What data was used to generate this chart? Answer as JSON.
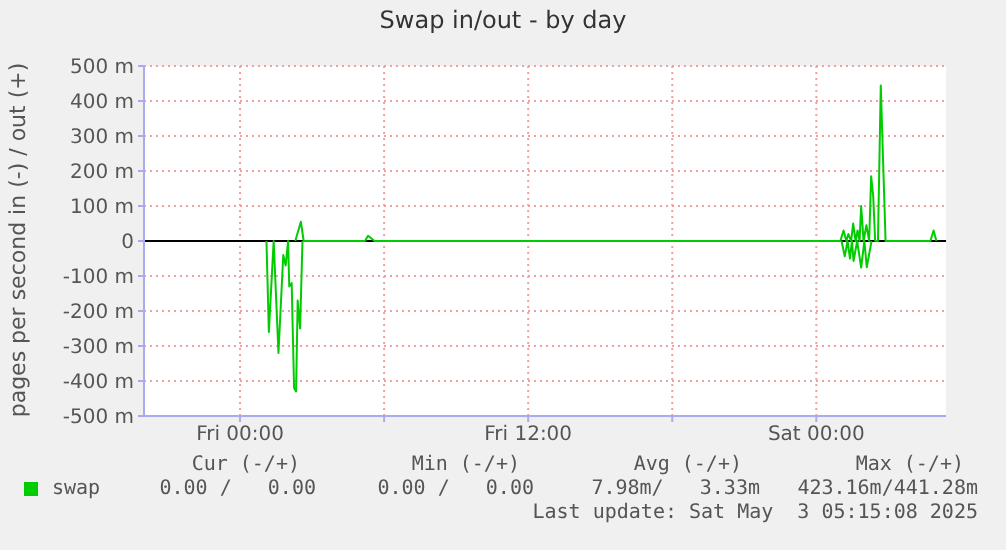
{
  "chart_data": {
    "type": "line",
    "title": "Swap in/out - by day",
    "ylabel": "pages per second in (-) / out (+)",
    "xlim": [
      "2025-05-01T20:00",
      "2025-05-03T05:24"
    ],
    "xticks": [
      {
        "value": "2025-05-02T00:00",
        "label": "Fri 00:00"
      },
      {
        "value": "2025-05-02T06:00",
        "label": null
      },
      {
        "value": "2025-05-02T12:00",
        "label": "Fri 12:00"
      },
      {
        "value": "2025-05-02T18:00",
        "label": null
      },
      {
        "value": "2025-05-03T00:00",
        "label": "Sat 00:00"
      }
    ],
    "ylim": [
      -500,
      500
    ],
    "yticks": [
      {
        "value": -500,
        "label": "-500 m"
      },
      {
        "value": -400,
        "label": "-400 m"
      },
      {
        "value": -300,
        "label": "-300 m"
      },
      {
        "value": -200,
        "label": "-200 m"
      },
      {
        "value": -100,
        "label": "-100 m"
      },
      0,
      {
        "value": 100,
        "label": "100 m"
      },
      {
        "value": 200,
        "label": "200 m"
      },
      {
        "value": 300,
        "label": "300 m"
      },
      {
        "value": 400,
        "label": "400 m"
      },
      {
        "value": 500,
        "label": "500 m"
      }
    ],
    "grid": true,
    "legend": "bottom left",
    "marker": "none",
    "line_style": "solid",
    "ref_lines": [
      {
        "axis": "y",
        "value": 0,
        "color": "#000000"
      }
    ],
    "series": [
      {
        "name": "swap",
        "color": "#00cc00",
        "x": [
          "2025-05-02T02:18",
          "2025-05-02T02:32",
          "2025-05-02T02:39",
          "2025-05-02T05:12",
          "2025-05-02T05:20",
          "2025-05-02T05:36",
          "2025-05-03T01:00",
          "2025-05-03T01:08",
          "2025-05-03T01:15",
          "2025-05-03T01:20",
          "2025-05-03T01:27",
          "2025-05-03T01:32",
          "2025-05-03T01:38",
          "2025-05-03T01:43",
          "2025-05-03T01:48",
          "2025-05-03T01:52",
          "2025-05-03T01:58",
          "2025-05-03T02:05",
          "2025-05-03T02:12",
          "2025-05-03T02:17",
          "2025-05-03T02:22",
          "2025-05-03T02:27",
          "2025-05-03T02:34",
          "2025-05-03T02:41",
          "2025-05-03T02:53",
          "2025-05-03T04:45",
          "2025-05-03T04:53",
          "2025-05-03T05:00"
        ],
        "values": [
          0,
          55,
          0,
          0,
          15,
          0,
          0,
          30,
          0,
          20,
          0,
          50,
          0,
          30,
          0,
          100,
          0,
          45,
          0,
          185,
          130,
          0,
          0,
          444,
          0,
          0,
          30,
          0
        ]
      },
      {
        "color": "#00cc00",
        "x": [
          "2025-05-02T01:06",
          "2025-05-02T01:12",
          "2025-05-02T01:24",
          "2025-05-02T01:36",
          "2025-05-02T01:48",
          "2025-05-02T01:54",
          "2025-05-02T02:00",
          "2025-05-02T02:03",
          "2025-05-02T02:09",
          "2025-05-02T02:15",
          "2025-05-02T02:20",
          "2025-05-02T02:24",
          "2025-05-02T02:30",
          "2025-05-02T02:36"
        ],
        "values": [
          0,
          -260,
          0,
          -320,
          -40,
          -70,
          0,
          -130,
          -120,
          -420,
          -430,
          -170,
          -250,
          0
        ]
      },
      {
        "color": "#00cc00",
        "x": [
          "2025-05-03T01:03",
          "2025-05-03T01:11",
          "2025-05-03T01:18",
          "2025-05-03T01:24",
          "2025-05-03T01:29",
          "2025-05-03T01:33",
          "2025-05-03T01:42",
          "2025-05-03T01:52",
          "2025-05-03T02:00",
          "2025-05-03T02:06",
          "2025-05-03T02:18"
        ],
        "values": [
          0,
          -44,
          0,
          -50,
          0,
          -57,
          0,
          -76,
          0,
          -75,
          0
        ]
      }
    ],
    "annotations": [
      "Cur (-/+)",
      "Min (-/+)",
      "Avg (-/+)",
      "Max (-/+)",
      "0.00 /   0.00",
      "0.00 /   0.00",
      "7.98m/   3.33m",
      "423.16m/441.28m",
      "Last update: Sat May  3 05:15:08 2025"
    ]
  }
}
